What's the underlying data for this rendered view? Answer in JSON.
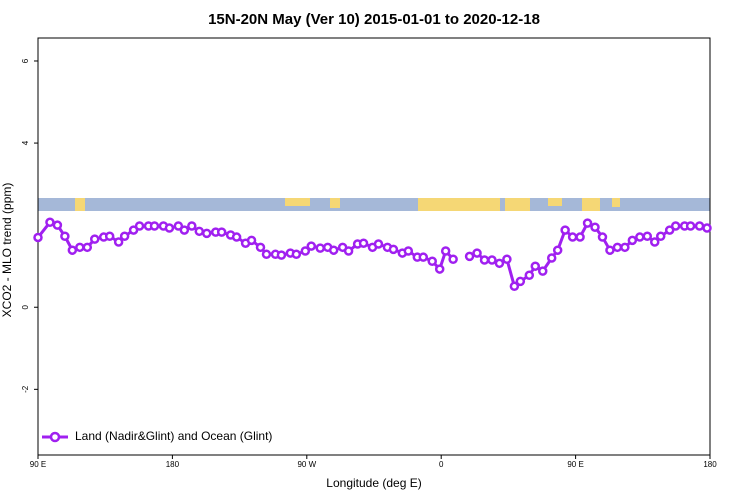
{
  "chart_data": {
    "type": "line",
    "title": "15N-20N May (Ver 10)   2015-01-01 to 2020-12-18",
    "xlabel": "Longitude (deg E)",
    "ylabel": "XCO2 - MLO trend (ppm)",
    "xlim": [
      90,
      540
    ],
    "xticks": [
      {
        "value": 90,
        "label": "90 E"
      },
      180,
      {
        "value": 270,
        "label": "90 W"
      },
      {
        "value": 360,
        "label": "0"
      },
      {
        "value": 450,
        "label": "90 E"
      },
      {
        "value": 540,
        "label": "180"
      }
    ],
    "ylim": [
      -3.6,
      6.56
    ],
    "yticks": [
      -2,
      0,
      4,
      6
    ],
    "legend": "bottom-left",
    "x": [
      90,
      98,
      103,
      108,
      113,
      118,
      123,
      128,
      134,
      138,
      144,
      148,
      154,
      158,
      164,
      168,
      174,
      178,
      184,
      188,
      193,
      198,
      203,
      209,
      213,
      219,
      223,
      229,
      233,
      239,
      243,
      249,
      253,
      259,
      263,
      269,
      273,
      279,
      284,
      288,
      294,
      298,
      304,
      308,
      314,
      318,
      324,
      328,
      334,
      338,
      344,
      348,
      354,
      359,
      363,
      368,
      373,
      379,
      384,
      389,
      394,
      399,
      404,
      409,
      413,
      419,
      423,
      428,
      434,
      438,
      443,
      448,
      453,
      458,
      463,
      468,
      473,
      478,
      483,
      488,
      493,
      498,
      503,
      507,
      513,
      517,
      523,
      527,
      533,
      538
    ],
    "series": [
      {
        "name": "Land (Nadir&Glint) and Ocean (Glint)",
        "color": "#a020f0",
        "values": [
          1.7,
          2.07,
          2.0,
          1.73,
          1.39,
          1.46,
          1.46,
          1.66,
          1.71,
          1.73,
          1.59,
          1.73,
          1.88,
          1.98,
          1.98,
          1.98,
          1.98,
          1.93,
          1.98,
          1.88,
          1.98,
          1.85,
          1.8,
          1.83,
          1.83,
          1.76,
          1.71,
          1.56,
          1.63,
          1.46,
          1.29,
          1.29,
          1.27,
          1.32,
          1.29,
          1.37,
          1.49,
          1.44,
          1.46,
          1.39,
          1.46,
          1.37,
          1.54,
          1.56,
          1.46,
          1.54,
          1.46,
          1.41,
          1.32,
          1.37,
          1.22,
          1.22,
          1.12,
          0.93,
          1.37,
          1.17,
          null,
          1.24,
          1.32,
          1.15,
          1.15,
          1.07,
          1.17,
          0.51,
          0.63,
          0.78,
          1.0,
          0.88,
          1.2,
          1.39,
          1.88,
          1.71,
          1.71,
          2.05,
          1.95,
          1.71,
          1.39,
          1.46,
          1.46,
          1.63,
          1.71,
          1.73,
          1.59,
          1.73,
          1.88,
          1.98,
          1.98,
          1.98,
          1.98,
          1.93
        ]
      }
    ]
  }
}
